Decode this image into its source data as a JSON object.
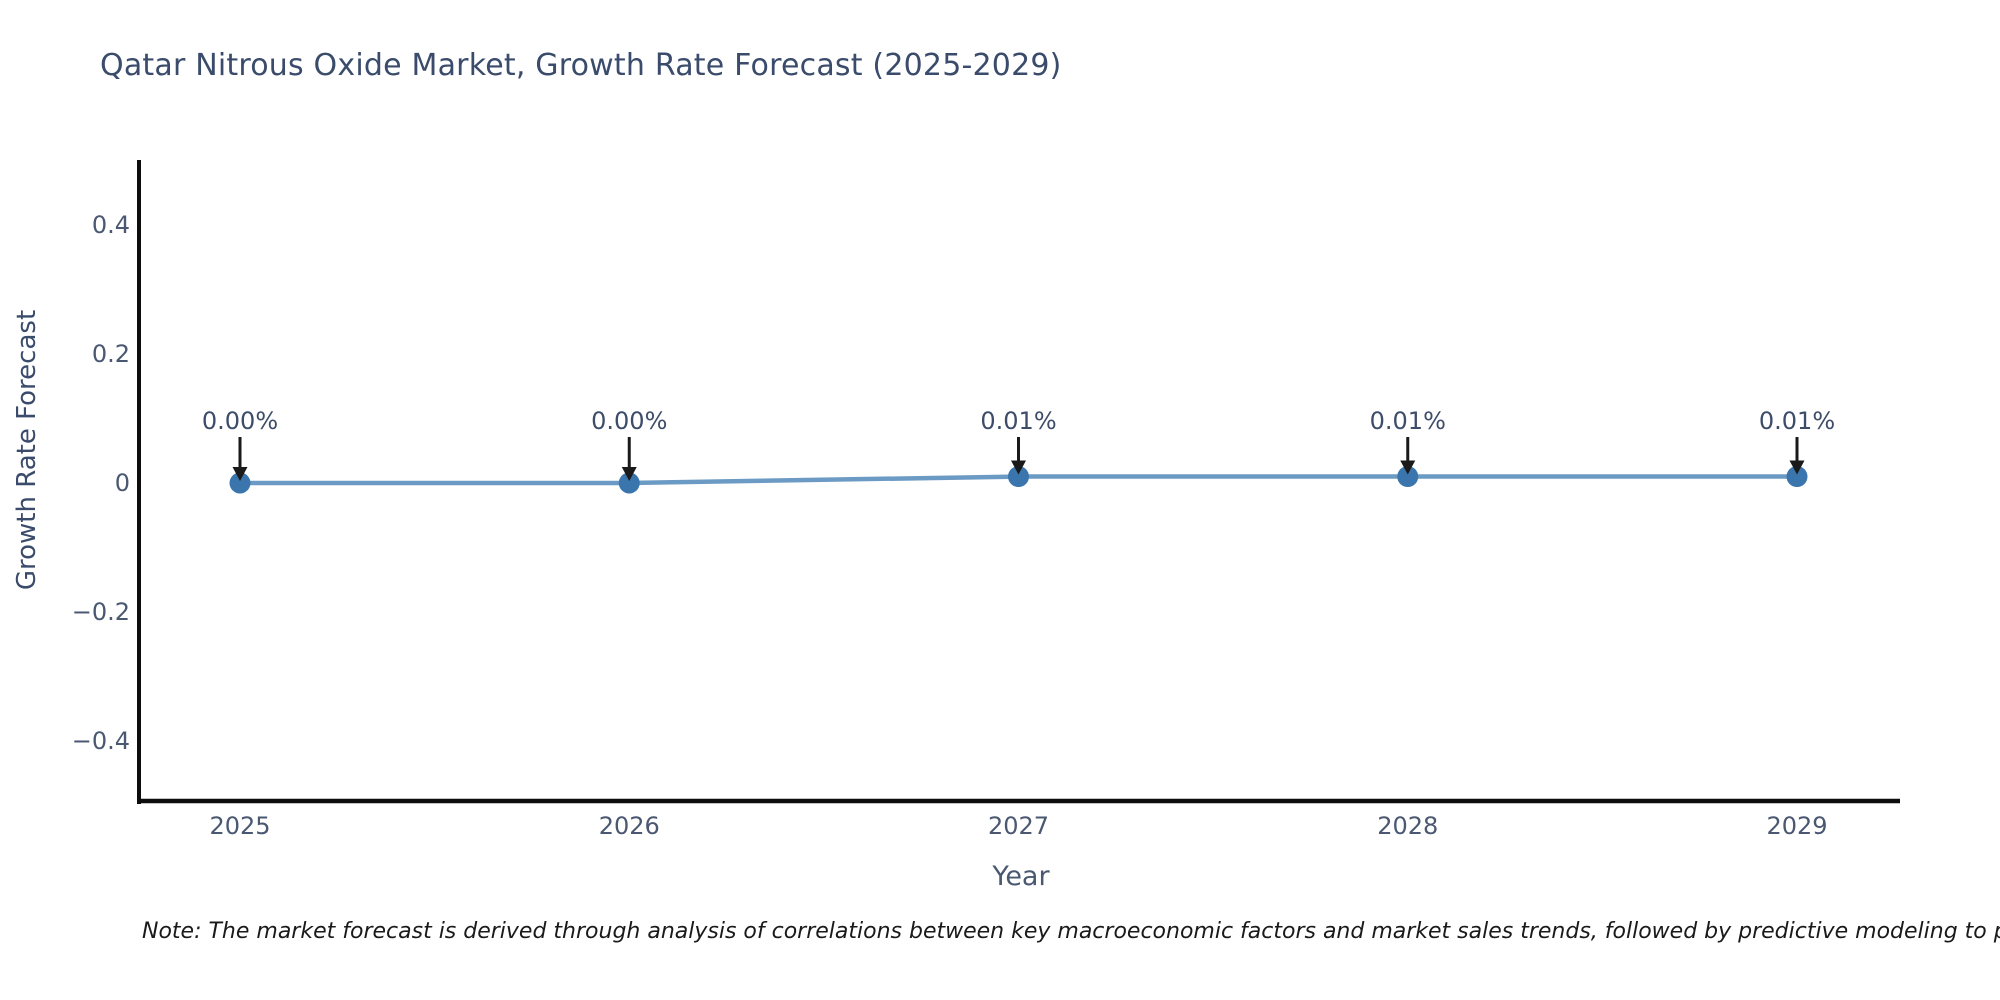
{
  "page": {
    "background": "#ffffff"
  },
  "chart_data": {
    "type": "line",
    "title": "Qatar Nitrous Oxide Market, Growth Rate Forecast (2025-2029)",
    "xlabel": "Year",
    "ylabel": "Growth Rate Forecast",
    "x": [
      2025,
      2026,
      2027,
      2028,
      2029
    ],
    "x_tick_labels": [
      "2025",
      "2026",
      "2027",
      "2028",
      "2029"
    ],
    "series": [
      {
        "name": "Growth Rate Forecast",
        "values": [
          0.0,
          0.0,
          0.01,
          0.01,
          0.01
        ]
      }
    ],
    "point_labels": [
      "0.00%",
      "0.00%",
      "0.01%",
      "0.01%",
      "0.01%"
    ],
    "y_ticks": [
      0.4,
      0.2,
      0,
      -0.2,
      -0.4
    ],
    "y_tick_labels": [
      "0.4",
      "0.2",
      "0",
      "−0.2",
      "−0.4"
    ],
    "ylim": [
      -0.5,
      0.5
    ],
    "grid": false,
    "legend": "none",
    "colors": {
      "line": "#6b9ac4",
      "marker": "#3a76ad",
      "axis": "#0d0d0d",
      "arrow": "#1a1a1a",
      "title_text": "#3a4b6b",
      "tick_text": "#4a5872",
      "annotation_text": "#3d4c68",
      "note_text": "#1a1a1a"
    }
  },
  "note": {
    "text": "Note: The market forecast is derived through analysis of correlations between key macroeconomic factors and market sales trends, followed by predictive modeling to project future sa"
  }
}
